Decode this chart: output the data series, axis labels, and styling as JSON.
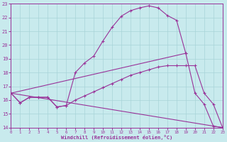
{
  "xlabel": "Windchill (Refroidissement éolien,°C)",
  "bg_color": "#c8eaed",
  "grid_color": "#a8d4d8",
  "line_color": "#993399",
  "xlim": [
    0,
    23
  ],
  "ylim": [
    14,
    23
  ],
  "xticks": [
    0,
    1,
    2,
    3,
    4,
    5,
    6,
    7,
    8,
    9,
    10,
    11,
    12,
    13,
    14,
    15,
    16,
    17,
    18,
    19,
    20,
    21,
    22,
    23
  ],
  "yticks": [
    14,
    15,
    16,
    17,
    18,
    19,
    20,
    21,
    22,
    23
  ],
  "line1_x": [
    0,
    1,
    2,
    3,
    4,
    5,
    6,
    7,
    8,
    9,
    10,
    11,
    12,
    13,
    14,
    15,
    16,
    17,
    18,
    19,
    20,
    21,
    22,
    23
  ],
  "line1_y": [
    16.5,
    15.8,
    16.2,
    16.2,
    16.2,
    15.5,
    15.6,
    18.0,
    18.7,
    19.2,
    20.3,
    21.3,
    22.1,
    22.5,
    22.7,
    22.85,
    22.7,
    22.15,
    21.8,
    19.4,
    16.5,
    15.7,
    14.1,
    14.0
  ],
  "line2_x": [
    0,
    1,
    2,
    3,
    4,
    5,
    6,
    7,
    8,
    9,
    10,
    11,
    12,
    13,
    14,
    15,
    16,
    17,
    18,
    19,
    20,
    21,
    22,
    23
  ],
  "line2_y": [
    16.5,
    15.8,
    16.2,
    16.2,
    16.2,
    15.5,
    15.6,
    16.0,
    16.3,
    16.6,
    16.9,
    17.2,
    17.5,
    17.8,
    18.0,
    18.2,
    18.4,
    18.5,
    18.5,
    18.5,
    18.5,
    16.5,
    15.7,
    14.0
  ],
  "line3_x": [
    0,
    23
  ],
  "line3_y": [
    16.5,
    14.0
  ],
  "line4_x": [
    0,
    19
  ],
  "line4_y": [
    16.5,
    19.4
  ]
}
